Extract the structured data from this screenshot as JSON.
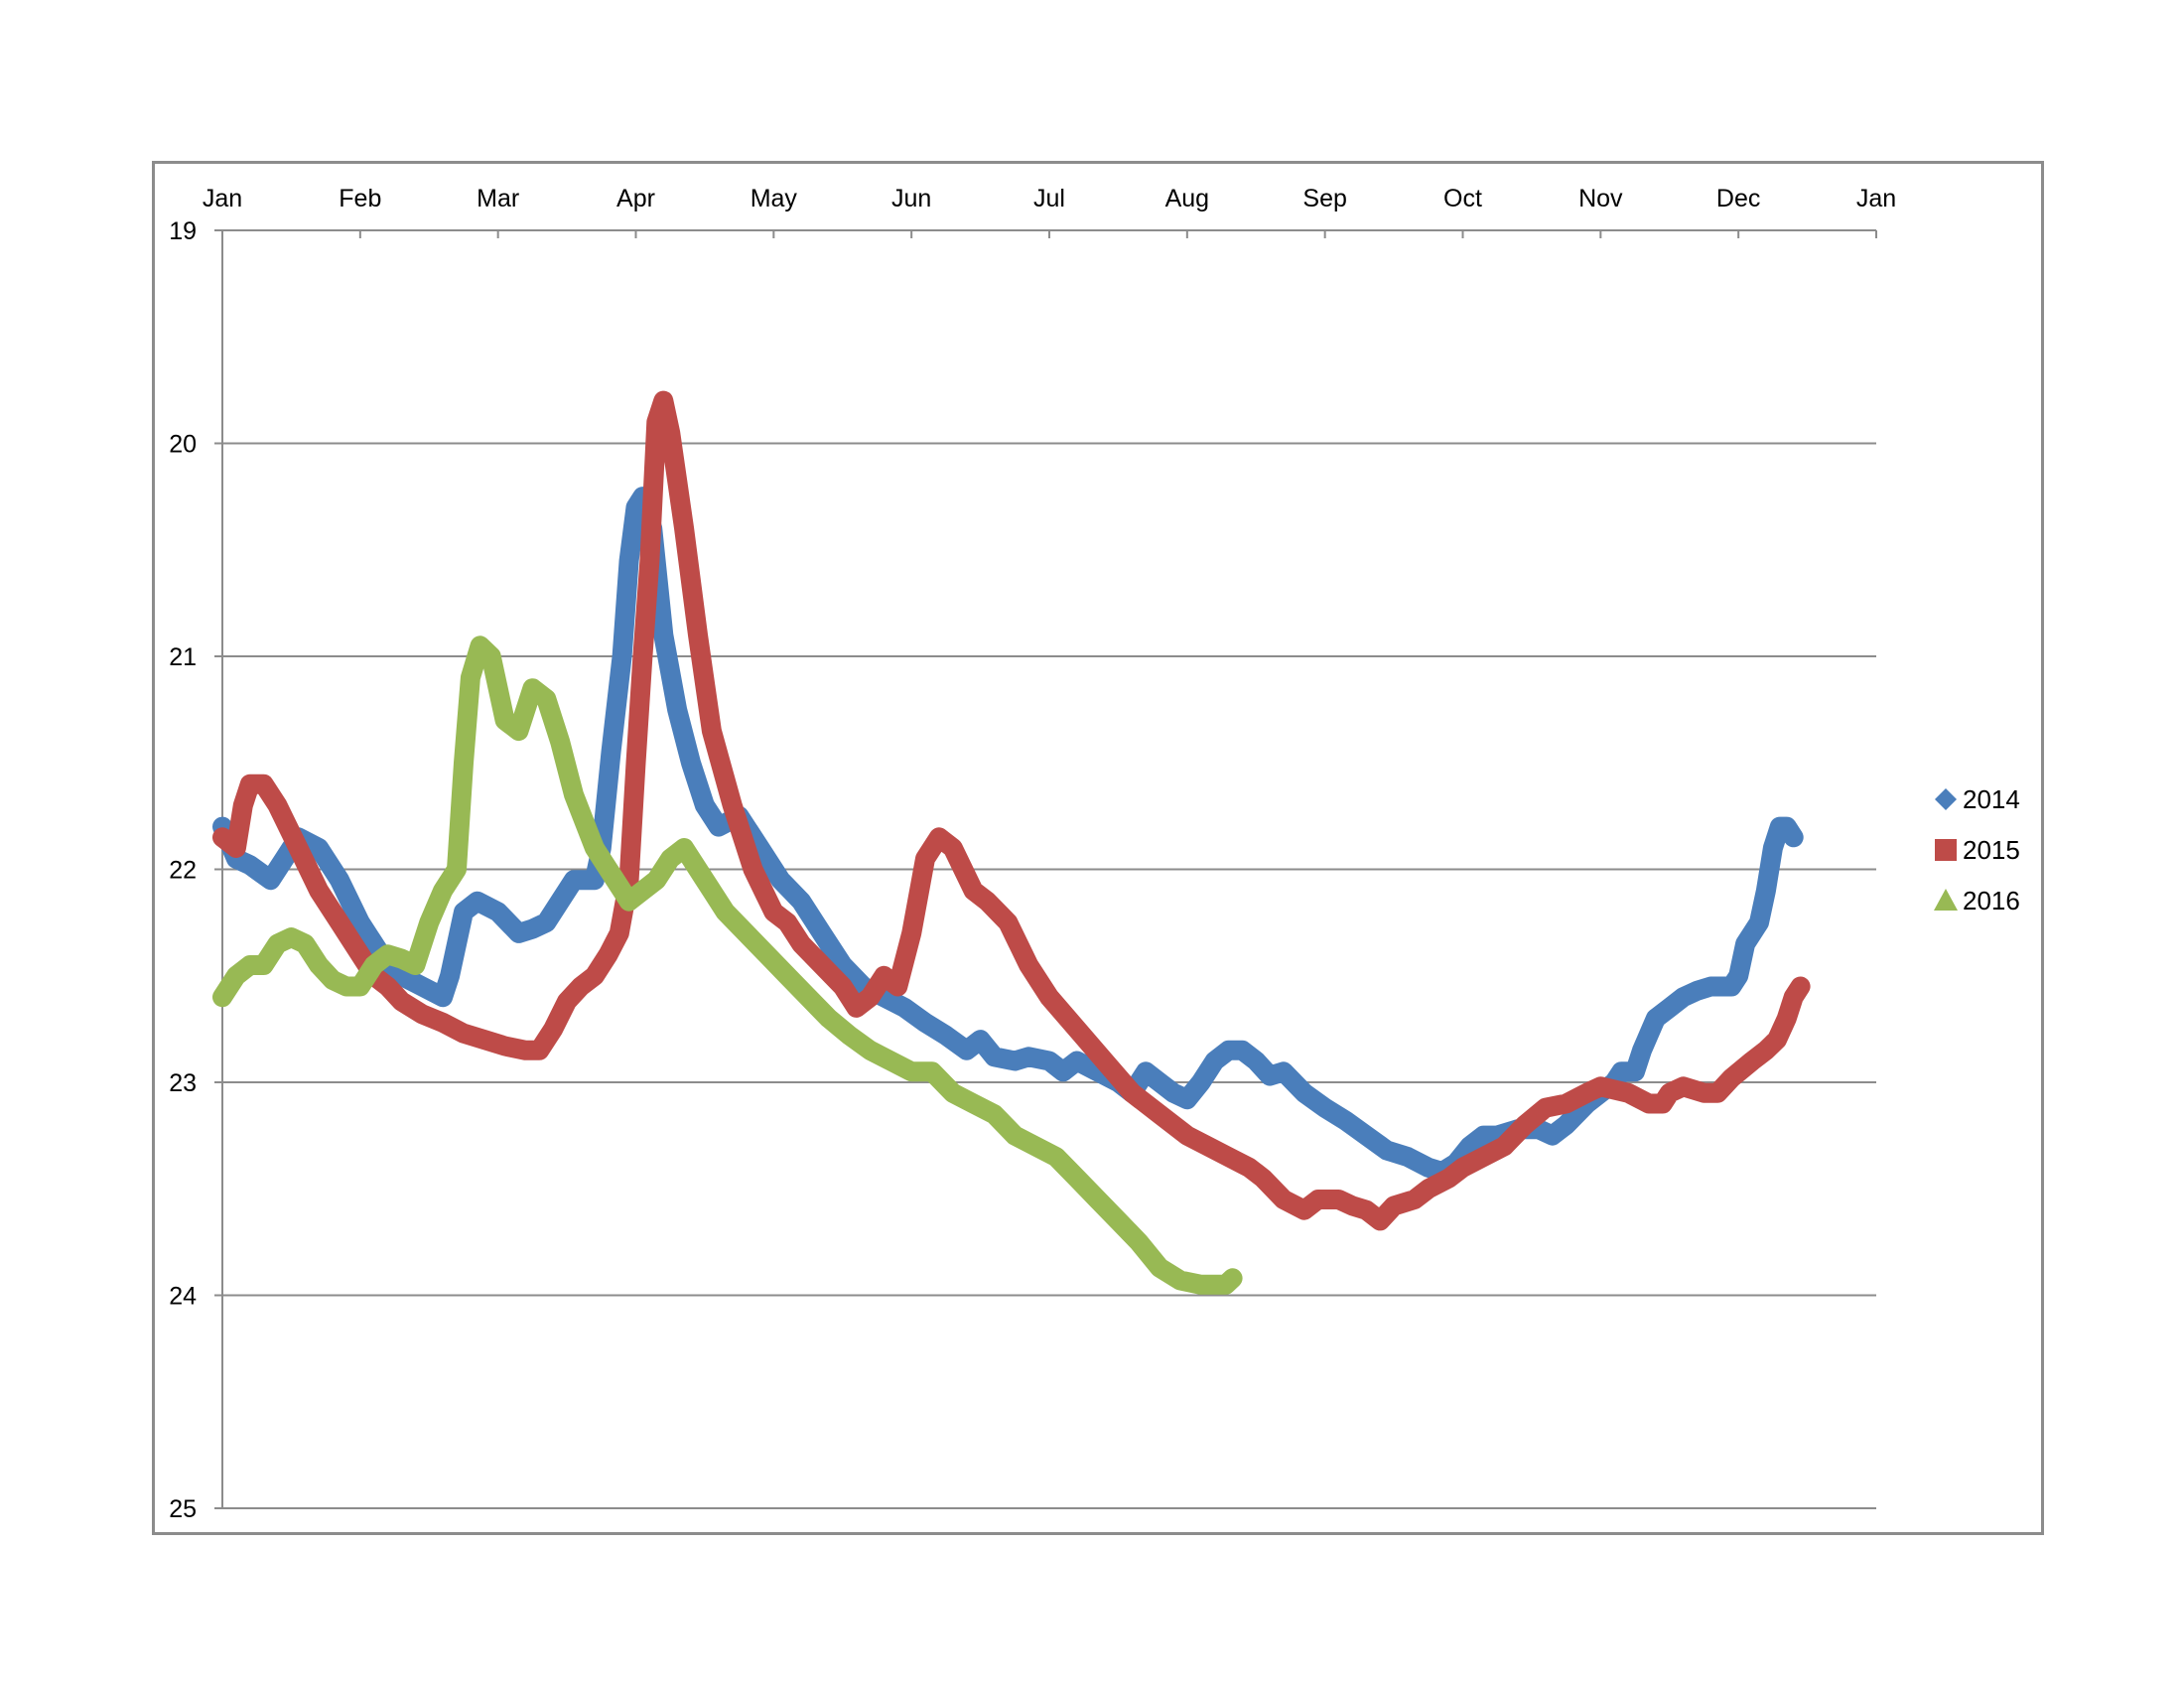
{
  "chart_data": {
    "type": "line",
    "title": "",
    "xlabel": "",
    "ylabel": "",
    "x_axis_position": "top",
    "y_axis_reversed": true,
    "ylim": [
      19,
      25
    ],
    "y_ticks": [
      19,
      20,
      21,
      22,
      23,
      24,
      25
    ],
    "x_range_months": [
      0,
      12
    ],
    "x_ticks": [
      {
        "m": 0,
        "label": "Jan"
      },
      {
        "m": 1,
        "label": "Feb"
      },
      {
        "m": 2,
        "label": "Mar"
      },
      {
        "m": 3,
        "label": "Apr"
      },
      {
        "m": 4,
        "label": "May"
      },
      {
        "m": 5,
        "label": "Jun"
      },
      {
        "m": 6,
        "label": "Jul"
      },
      {
        "m": 7,
        "label": "Aug"
      },
      {
        "m": 8,
        "label": "Sep"
      },
      {
        "m": 9,
        "label": "Oct"
      },
      {
        "m": 10,
        "label": "Nov"
      },
      {
        "m": 11,
        "label": "Dec"
      },
      {
        "m": 12,
        "label": "Jan"
      }
    ],
    "grid": "horizontal",
    "legend_position": "right",
    "series": [
      {
        "name": "2014",
        "color": "#4a7ebb",
        "marker": "diamond",
        "points": [
          [
            0.0,
            21.8
          ],
          [
            0.1,
            21.95
          ],
          [
            0.2,
            21.98
          ],
          [
            0.35,
            22.05
          ],
          [
            0.45,
            21.95
          ],
          [
            0.55,
            21.85
          ],
          [
            0.7,
            21.9
          ],
          [
            0.85,
            22.05
          ],
          [
            1.0,
            22.25
          ],
          [
            1.15,
            22.4
          ],
          [
            1.3,
            22.5
          ],
          [
            1.45,
            22.55
          ],
          [
            1.6,
            22.6
          ],
          [
            1.65,
            22.5
          ],
          [
            1.75,
            22.2
          ],
          [
            1.85,
            22.15
          ],
          [
            2.0,
            22.2
          ],
          [
            2.15,
            22.3
          ],
          [
            2.25,
            22.28
          ],
          [
            2.35,
            22.25
          ],
          [
            2.45,
            22.15
          ],
          [
            2.55,
            22.05
          ],
          [
            2.7,
            22.05
          ],
          [
            2.75,
            21.9
          ],
          [
            2.82,
            21.45
          ],
          [
            2.9,
            21.0
          ],
          [
            2.95,
            20.55
          ],
          [
            3.0,
            20.3
          ],
          [
            3.05,
            20.25
          ],
          [
            3.12,
            20.4
          ],
          [
            3.2,
            20.9
          ],
          [
            3.3,
            21.25
          ],
          [
            3.4,
            21.5
          ],
          [
            3.5,
            21.7
          ],
          [
            3.6,
            21.8
          ],
          [
            3.75,
            21.75
          ],
          [
            3.9,
            21.9
          ],
          [
            4.05,
            22.05
          ],
          [
            4.2,
            22.15
          ],
          [
            4.35,
            22.3
          ],
          [
            4.5,
            22.45
          ],
          [
            4.65,
            22.55
          ],
          [
            4.8,
            22.6
          ],
          [
            4.95,
            22.65
          ],
          [
            5.1,
            22.72
          ],
          [
            5.25,
            22.78
          ],
          [
            5.4,
            22.85
          ],
          [
            5.5,
            22.8
          ],
          [
            5.6,
            22.88
          ],
          [
            5.75,
            22.9
          ],
          [
            5.85,
            22.88
          ],
          [
            6.0,
            22.9
          ],
          [
            6.1,
            22.95
          ],
          [
            6.2,
            22.9
          ],
          [
            6.35,
            22.95
          ],
          [
            6.5,
            23.0
          ],
          [
            6.6,
            23.05
          ],
          [
            6.7,
            22.95
          ],
          [
            6.8,
            23.0
          ],
          [
            6.9,
            23.05
          ],
          [
            7.0,
            23.08
          ],
          [
            7.1,
            23.0
          ],
          [
            7.2,
            22.9
          ],
          [
            7.3,
            22.85
          ],
          [
            7.4,
            22.85
          ],
          [
            7.5,
            22.9
          ],
          [
            7.6,
            22.97
          ],
          [
            7.7,
            22.95
          ],
          [
            7.85,
            23.05
          ],
          [
            8.0,
            23.12
          ],
          [
            8.15,
            23.18
          ],
          [
            8.3,
            23.25
          ],
          [
            8.45,
            23.32
          ],
          [
            8.6,
            23.35
          ],
          [
            8.75,
            23.4
          ],
          [
            8.85,
            23.42
          ],
          [
            8.95,
            23.38
          ],
          [
            9.05,
            23.3
          ],
          [
            9.15,
            23.25
          ],
          [
            9.25,
            23.25
          ],
          [
            9.4,
            23.22
          ],
          [
            9.55,
            23.22
          ],
          [
            9.65,
            23.25
          ],
          [
            9.75,
            23.2
          ],
          [
            9.9,
            23.1
          ],
          [
            10.0,
            23.05
          ],
          [
            10.1,
            23.0
          ],
          [
            10.15,
            22.95
          ],
          [
            10.25,
            22.95
          ],
          [
            10.3,
            22.85
          ],
          [
            10.4,
            22.7
          ],
          [
            10.5,
            22.65
          ],
          [
            10.6,
            22.6
          ],
          [
            10.7,
            22.57
          ],
          [
            10.8,
            22.55
          ],
          [
            10.95,
            22.55
          ],
          [
            11.0,
            22.5
          ],
          [
            11.05,
            22.35
          ],
          [
            11.1,
            22.3
          ],
          [
            11.15,
            22.25
          ],
          [
            11.2,
            22.1
          ],
          [
            11.25,
            21.9
          ],
          [
            11.3,
            21.8
          ],
          [
            11.35,
            21.8
          ],
          [
            11.4,
            21.85
          ]
        ]
      },
      {
        "name": "2015",
        "color": "#be4b48",
        "marker": "square",
        "points": [
          [
            0.0,
            21.85
          ],
          [
            0.1,
            21.9
          ],
          [
            0.15,
            21.7
          ],
          [
            0.2,
            21.6
          ],
          [
            0.3,
            21.6
          ],
          [
            0.4,
            21.7
          ],
          [
            0.55,
            21.9
          ],
          [
            0.7,
            22.1
          ],
          [
            0.85,
            22.25
          ],
          [
            1.0,
            22.4
          ],
          [
            1.1,
            22.5
          ],
          [
            1.2,
            22.55
          ],
          [
            1.3,
            22.62
          ],
          [
            1.45,
            22.68
          ],
          [
            1.6,
            22.72
          ],
          [
            1.75,
            22.77
          ],
          [
            1.9,
            22.8
          ],
          [
            2.05,
            22.83
          ],
          [
            2.2,
            22.85
          ],
          [
            2.3,
            22.85
          ],
          [
            2.4,
            22.75
          ],
          [
            2.5,
            22.62
          ],
          [
            2.6,
            22.55
          ],
          [
            2.7,
            22.5
          ],
          [
            2.8,
            22.4
          ],
          [
            2.88,
            22.3
          ],
          [
            2.95,
            22.05
          ],
          [
            3.0,
            21.5
          ],
          [
            3.05,
            21.0
          ],
          [
            3.1,
            20.55
          ],
          [
            3.15,
            19.9
          ],
          [
            3.2,
            19.8
          ],
          [
            3.25,
            19.95
          ],
          [
            3.35,
            20.4
          ],
          [
            3.45,
            20.9
          ],
          [
            3.55,
            21.35
          ],
          [
            3.7,
            21.7
          ],
          [
            3.85,
            22.0
          ],
          [
            4.0,
            22.2
          ],
          [
            4.1,
            22.25
          ],
          [
            4.2,
            22.35
          ],
          [
            4.35,
            22.45
          ],
          [
            4.5,
            22.55
          ],
          [
            4.6,
            22.65
          ],
          [
            4.7,
            22.6
          ],
          [
            4.8,
            22.5
          ],
          [
            4.9,
            22.55
          ],
          [
            5.0,
            22.3
          ],
          [
            5.1,
            21.95
          ],
          [
            5.2,
            21.85
          ],
          [
            5.3,
            21.9
          ],
          [
            5.45,
            22.1
          ],
          [
            5.55,
            22.15
          ],
          [
            5.7,
            22.25
          ],
          [
            5.85,
            22.45
          ],
          [
            6.0,
            22.6
          ],
          [
            6.2,
            22.75
          ],
          [
            6.4,
            22.9
          ],
          [
            6.6,
            23.05
          ],
          [
            6.8,
            23.15
          ],
          [
            7.0,
            23.25
          ],
          [
            7.15,
            23.3
          ],
          [
            7.3,
            23.35
          ],
          [
            7.45,
            23.4
          ],
          [
            7.55,
            23.45
          ],
          [
            7.7,
            23.55
          ],
          [
            7.85,
            23.6
          ],
          [
            7.95,
            23.55
          ],
          [
            8.1,
            23.55
          ],
          [
            8.2,
            23.58
          ],
          [
            8.3,
            23.6
          ],
          [
            8.4,
            23.65
          ],
          [
            8.5,
            23.58
          ],
          [
            8.65,
            23.55
          ],
          [
            8.75,
            23.5
          ],
          [
            8.9,
            23.45
          ],
          [
            9.0,
            23.4
          ],
          [
            9.15,
            23.35
          ],
          [
            9.3,
            23.3
          ],
          [
            9.45,
            23.2
          ],
          [
            9.6,
            23.12
          ],
          [
            9.75,
            23.1
          ],
          [
            9.9,
            23.05
          ],
          [
            10.0,
            23.02
          ],
          [
            10.2,
            23.05
          ],
          [
            10.35,
            23.1
          ],
          [
            10.45,
            23.1
          ],
          [
            10.5,
            23.05
          ],
          [
            10.6,
            23.02
          ],
          [
            10.75,
            23.05
          ],
          [
            10.85,
            23.05
          ],
          [
            10.95,
            22.98
          ],
          [
            11.1,
            22.9
          ],
          [
            11.2,
            22.85
          ],
          [
            11.28,
            22.8
          ],
          [
            11.35,
            22.7
          ],
          [
            11.4,
            22.6
          ],
          [
            11.45,
            22.55
          ]
        ]
      },
      {
        "name": "2016",
        "color": "#98b954",
        "marker": "triangle",
        "points": [
          [
            0.0,
            22.6
          ],
          [
            0.1,
            22.5
          ],
          [
            0.2,
            22.45
          ],
          [
            0.3,
            22.45
          ],
          [
            0.4,
            22.35
          ],
          [
            0.5,
            22.32
          ],
          [
            0.6,
            22.35
          ],
          [
            0.7,
            22.45
          ],
          [
            0.8,
            22.52
          ],
          [
            0.9,
            22.55
          ],
          [
            1.0,
            22.55
          ],
          [
            1.1,
            22.45
          ],
          [
            1.2,
            22.4
          ],
          [
            1.3,
            22.42
          ],
          [
            1.4,
            22.45
          ],
          [
            1.5,
            22.25
          ],
          [
            1.6,
            22.1
          ],
          [
            1.7,
            22.0
          ],
          [
            1.75,
            21.5
          ],
          [
            1.8,
            21.1
          ],
          [
            1.87,
            20.95
          ],
          [
            1.95,
            21.0
          ],
          [
            2.05,
            21.3
          ],
          [
            2.15,
            21.35
          ],
          [
            2.25,
            21.15
          ],
          [
            2.35,
            21.2
          ],
          [
            2.45,
            21.4
          ],
          [
            2.55,
            21.65
          ],
          [
            2.7,
            21.9
          ],
          [
            2.85,
            22.05
          ],
          [
            2.95,
            22.15
          ],
          [
            3.05,
            22.1
          ],
          [
            3.15,
            22.05
          ],
          [
            3.25,
            21.95
          ],
          [
            3.35,
            21.9
          ],
          [
            3.45,
            22.0
          ],
          [
            3.55,
            22.1
          ],
          [
            3.65,
            22.2
          ],
          [
            3.8,
            22.3
          ],
          [
            3.95,
            22.4
          ],
          [
            4.1,
            22.5
          ],
          [
            4.25,
            22.6
          ],
          [
            4.4,
            22.7
          ],
          [
            4.55,
            22.78
          ],
          [
            4.7,
            22.85
          ],
          [
            4.85,
            22.9
          ],
          [
            5.0,
            22.95
          ],
          [
            5.15,
            22.95
          ],
          [
            5.3,
            23.05
          ],
          [
            5.45,
            23.1
          ],
          [
            5.6,
            23.15
          ],
          [
            5.75,
            23.25
          ],
          [
            5.9,
            23.3
          ],
          [
            6.05,
            23.35
          ],
          [
            6.2,
            23.45
          ],
          [
            6.35,
            23.55
          ],
          [
            6.5,
            23.65
          ],
          [
            6.65,
            23.75
          ],
          [
            6.8,
            23.87
          ],
          [
            6.95,
            23.93
          ],
          [
            7.1,
            23.95
          ],
          [
            7.2,
            23.95
          ],
          [
            7.28,
            23.95
          ],
          [
            7.33,
            23.92
          ]
        ]
      }
    ]
  }
}
